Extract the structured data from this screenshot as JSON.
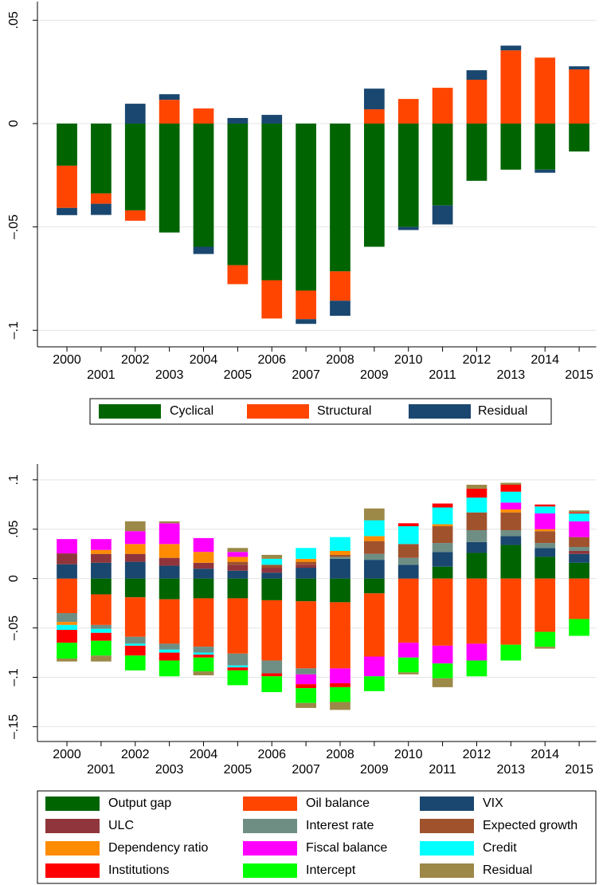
{
  "chart_data": [
    {
      "type": "bar",
      "stacked": true,
      "grid": true,
      "legend": "bottom",
      "categories": [
        "2000",
        "2001",
        "2002",
        "2003",
        "2004",
        "2005",
        "2006",
        "2007",
        "2008",
        "2009",
        "2010",
        "2011",
        "2012",
        "2013",
        "2014",
        "2015"
      ],
      "ylim": [
        -0.108,
        0.059
      ],
      "yticks": [
        {
          "value": -0.1,
          "label": "–.1"
        },
        {
          "value": -0.05,
          "label": "–.05"
        },
        0,
        {
          "value": 0.05,
          "label": ".05"
        }
      ],
      "series": [
        {
          "name": "Cyclical",
          "color": "#006400",
          "values": [
            -0.0204,
            -0.0338,
            -0.042,
            -0.0527,
            -0.0596,
            -0.0685,
            -0.0758,
            -0.0808,
            -0.0715,
            -0.0596,
            -0.05,
            -0.0396,
            -0.0277,
            -0.0223,
            -0.0223,
            -0.0135
          ]
        },
        {
          "name": "Structural",
          "color": "#ff4500",
          "values": [
            -0.0204,
            -0.005,
            -0.005,
            0.0115,
            0.0073,
            -0.0092,
            -0.0185,
            -0.0138,
            -0.0142,
            0.0069,
            0.0119,
            0.0173,
            0.0212,
            0.0354,
            0.0319,
            0.0262
          ]
        },
        {
          "name": "Residual",
          "color": "#1a476f",
          "values": [
            -0.0035,
            -0.0054,
            0.0096,
            0.0027,
            -0.0035,
            0.0027,
            0.0042,
            -0.0023,
            -0.0073,
            0.01,
            -0.0015,
            -0.0092,
            0.0046,
            0.0023,
            -0.0015,
            0.0015
          ]
        }
      ]
    },
    {
      "type": "bar",
      "stacked": true,
      "grid": true,
      "legend": "bottom",
      "categories": [
        "2000",
        "2001",
        "2002",
        "2003",
        "2004",
        "2005",
        "2006",
        "2007",
        "2008",
        "2009",
        "2010",
        "2011",
        "2012",
        "2013",
        "2014",
        "2015"
      ],
      "ylim": [
        -0.165,
        0.116
      ],
      "yticks": [
        {
          "value": -0.15,
          "label": "–.15"
        },
        {
          "value": -0.1,
          "label": "–.1"
        },
        {
          "value": -0.05,
          "label": "–.05"
        },
        0,
        {
          "value": 0.05,
          "label": ".05"
        },
        {
          "value": 0.1,
          "label": ".1"
        }
      ],
      "series": [
        {
          "name": "Output gap",
          "color": "#006400",
          "values": [
            0,
            -0.016,
            -0.019,
            -0.021,
            -0.02,
            -0.02,
            -0.022,
            -0.023,
            -0.024,
            -0.015,
            0,
            0.012,
            0.026,
            0.034,
            0.022,
            0.016
          ]
        },
        {
          "name": "Oil balance",
          "color": "#ff4500",
          "values": [
            -0.035,
            -0.031,
            -0.04,
            -0.045,
            -0.049,
            -0.056,
            -0.061,
            -0.068,
            -0.067,
            -0.064,
            -0.065,
            -0.068,
            -0.066,
            -0.067,
            -0.054,
            -0.041
          ]
        },
        {
          "name": "VIX",
          "color": "#1a476f",
          "values": [
            0.0145,
            0.016,
            0.017,
            0.013,
            0.01,
            0.008,
            0.006,
            0.011,
            0.02,
            0.019,
            0.014,
            0.015,
            0.011,
            0.009,
            0.009,
            0.009
          ]
        },
        {
          "name": "ULC",
          "color": "#90353b",
          "values": [
            0.011,
            0.009,
            0.008,
            0.008,
            0.006,
            0.006,
            0.005,
            0.003,
            0,
            0,
            0,
            0,
            0,
            0,
            0,
            0.003
          ]
        },
        {
          "name": "Interest rate",
          "color": "#6e8e84",
          "values": [
            -0.009,
            -0.004,
            -0.007,
            -0.006,
            -0.006,
            -0.012,
            -0.013,
            -0.006,
            0.002,
            0.006,
            0.007,
            0.009,
            0.012,
            0.006,
            0.005,
            0.004
          ]
        },
        {
          "name": "Expected growth",
          "color": "#a0522d",
          "values": [
            0,
            0,
            0,
            0,
            0,
            0.003,
            0.003,
            0.003,
            0.002,
            0.013,
            0.014,
            0.017,
            0.018,
            0.018,
            0.012,
            0.01
          ]
        },
        {
          "name": "Dependency ratio",
          "color": "#ff8c00",
          "values": [
            -0.003,
            0.004,
            0.01,
            0.014,
            0.011,
            0.005,
            0,
            0.003,
            0.004,
            0.005,
            0,
            0.002,
            0,
            0.003,
            0.002,
            0
          ]
        },
        {
          "name": "Fiscal balance",
          "color": "#ff00ff",
          "values": [
            0.0145,
            0.011,
            0.013,
            0.021,
            0.014,
            0.005,
            0,
            -0.01,
            -0.015,
            -0.02,
            -0.015,
            -0.018,
            -0.017,
            0.007,
            0.016,
            0.016
          ]
        },
        {
          "name": "Credit",
          "color": "#00ffff",
          "values": [
            -0.005,
            -0.004,
            -0.002,
            -0.003,
            -0.002,
            -0.002,
            0.006,
            0.011,
            0.014,
            0.016,
            0.018,
            0.017,
            0.015,
            0.011,
            0.007,
            0.008
          ]
        },
        {
          "name": "Institutions",
          "color": "#ff0000",
          "values": [
            -0.013,
            -0.008,
            -0.01,
            -0.008,
            -0.003,
            -0.003,
            -0.003,
            -0.004,
            -0.004,
            0,
            0.003,
            0.004,
            0.009,
            0.007,
            0.002,
            0.001
          ]
        },
        {
          "name": "Intercept",
          "color": "#00ff00",
          "values": [
            -0.016,
            -0.015,
            -0.015,
            -0.016,
            -0.014,
            -0.015,
            -0.016,
            -0.015,
            -0.015,
            -0.015,
            -0.015,
            -0.015,
            -0.016,
            -0.016,
            -0.015,
            -0.017
          ]
        },
        {
          "name": "Residual",
          "color": "#9c8847",
          "values": [
            -0.003,
            -0.006,
            0.01,
            0.002,
            -0.004,
            0.004,
            0.004,
            -0.005,
            -0.008,
            0.012,
            -0.002,
            -0.009,
            0.004,
            0.002,
            -0.002,
            0.002
          ]
        }
      ]
    }
  ]
}
